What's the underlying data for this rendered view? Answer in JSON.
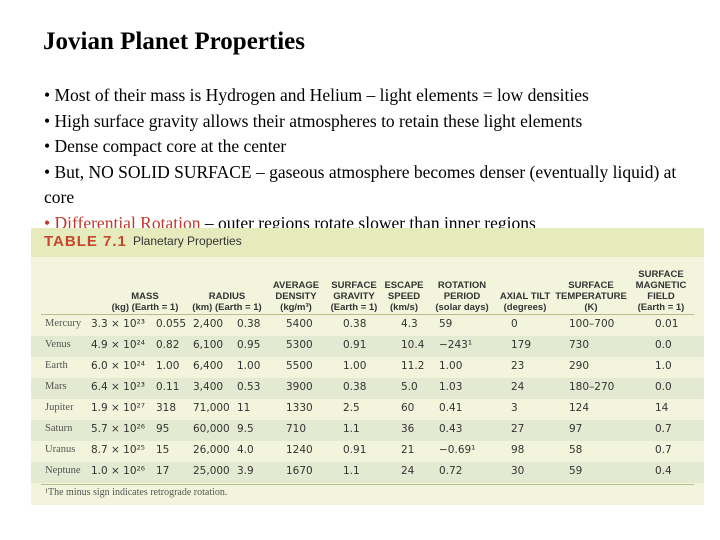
{
  "slide": {
    "title": "Jovian Planet Properties",
    "bullets": [
      {
        "prefix": "• Most of their mass is Hydrogen and Helium – light elements = low densities",
        "highlight": "",
        "suffix": ""
      },
      {
        "prefix": "• High surface gravity allows their atmospheres to retain these light elements",
        "highlight": "",
        "suffix": ""
      },
      {
        "prefix": "• Dense compact core at the center",
        "highlight": "",
        "suffix": ""
      },
      {
        "prefix": "• But, NO SOLID SURFACE – gaseous atmosphere becomes denser (eventually liquid) at core",
        "highlight": "",
        "suffix": ""
      },
      {
        "prefix": "",
        "highlight": "• Differential Rotation",
        "suffix": " – outer regions rotate slower than inner regions"
      }
    ]
  },
  "table": {
    "number": "TABLE 7.1",
    "title": "Planetary Properties",
    "columns": [
      {
        "label": "MASS",
        "unit": "(kg)  (Earth = 1)"
      },
      {
        "label": "RADIUS",
        "unit": "(km)  (Earth = 1)"
      },
      {
        "label": "AVERAGE DENSITY",
        "unit": "(kg/m³)"
      },
      {
        "label": "SURFACE GRAVITY",
        "unit": "(Earth = 1)"
      },
      {
        "label": "ESCAPE SPEED",
        "unit": "(km/s)"
      },
      {
        "label": "ROTATION PERIOD",
        "unit": "(solar days)"
      },
      {
        "label": "AXIAL TILT",
        "unit": "(degrees)"
      },
      {
        "label": "SURFACE TEMPERATURE",
        "unit": "(K)"
      },
      {
        "label": "SURFACE MAGNETIC FIELD",
        "unit": "(Earth = 1)"
      }
    ],
    "rows": [
      {
        "name": "Mercury",
        "mass_kg": "3.3 × 10²³",
        "mass_e": "0.055",
        "radius_km": "2,400",
        "radius_e": "0.38",
        "density": "5400",
        "gravity": "0.38",
        "escape": "4.3",
        "rotation": "59",
        "tilt": "0",
        "temp": "100–700",
        "field": "0.01"
      },
      {
        "name": "Venus",
        "mass_kg": "4.9 × 10²⁴",
        "mass_e": "0.82",
        "radius_km": "6,100",
        "radius_e": "0.95",
        "density": "5300",
        "gravity": "0.91",
        "escape": "10.4",
        "rotation": "−243¹",
        "tilt": "179",
        "temp": "730",
        "field": "0.0"
      },
      {
        "name": "Earth",
        "mass_kg": "6.0 × 10²⁴",
        "mass_e": "1.00",
        "radius_km": "6,400",
        "radius_e": "1.00",
        "density": "5500",
        "gravity": "1.00",
        "escape": "11.2",
        "rotation": "1.00",
        "tilt": "23",
        "temp": "290",
        "field": "1.0"
      },
      {
        "name": "Mars",
        "mass_kg": "6.4 × 10²³",
        "mass_e": "0.11",
        "radius_km": "3,400",
        "radius_e": "0.53",
        "density": "3900",
        "gravity": "0.38",
        "escape": "5.0",
        "rotation": "1.03",
        "tilt": "24",
        "temp": "180–270",
        "field": "0.0"
      },
      {
        "name": "Jupiter",
        "mass_kg": "1.9 × 10²⁷",
        "mass_e": "318",
        "radius_km": "71,000",
        "radius_e": "11",
        "density": "1330",
        "gravity": "2.5",
        "escape": "60",
        "rotation": "0.41",
        "tilt": "3",
        "temp": "124",
        "field": "14"
      },
      {
        "name": "Saturn",
        "mass_kg": "5.7 × 10²⁶",
        "mass_e": "95",
        "radius_km": "60,000",
        "radius_e": "9.5",
        "density": "710",
        "gravity": "1.1",
        "escape": "36",
        "rotation": "0.43",
        "tilt": "27",
        "temp": "97",
        "field": "0.7"
      },
      {
        "name": "Uranus",
        "mass_kg": "8.7 × 10²⁵",
        "mass_e": "15",
        "radius_km": "26,000",
        "radius_e": "4.0",
        "density": "1240",
        "gravity": "0.91",
        "escape": "21",
        "rotation": "−0.69¹",
        "tilt": "98",
        "temp": "58",
        "field": "0.7"
      },
      {
        "name": "Neptune",
        "mass_kg": "1.0 × 10²⁶",
        "mass_e": "17",
        "radius_km": "25,000",
        "radius_e": "3.9",
        "density": "1670",
        "gravity": "1.1",
        "escape": "24",
        "rotation": "0.72",
        "tilt": "30",
        "temp": "59",
        "field": "0.4"
      }
    ],
    "footnote": "¹The minus sign indicates retrograde rotation.",
    "colors": {
      "panel": "#f2f5dc",
      "header": "#e6ebbd",
      "alt_row": "#e4ead2",
      "accent": "#c8452a"
    }
  }
}
